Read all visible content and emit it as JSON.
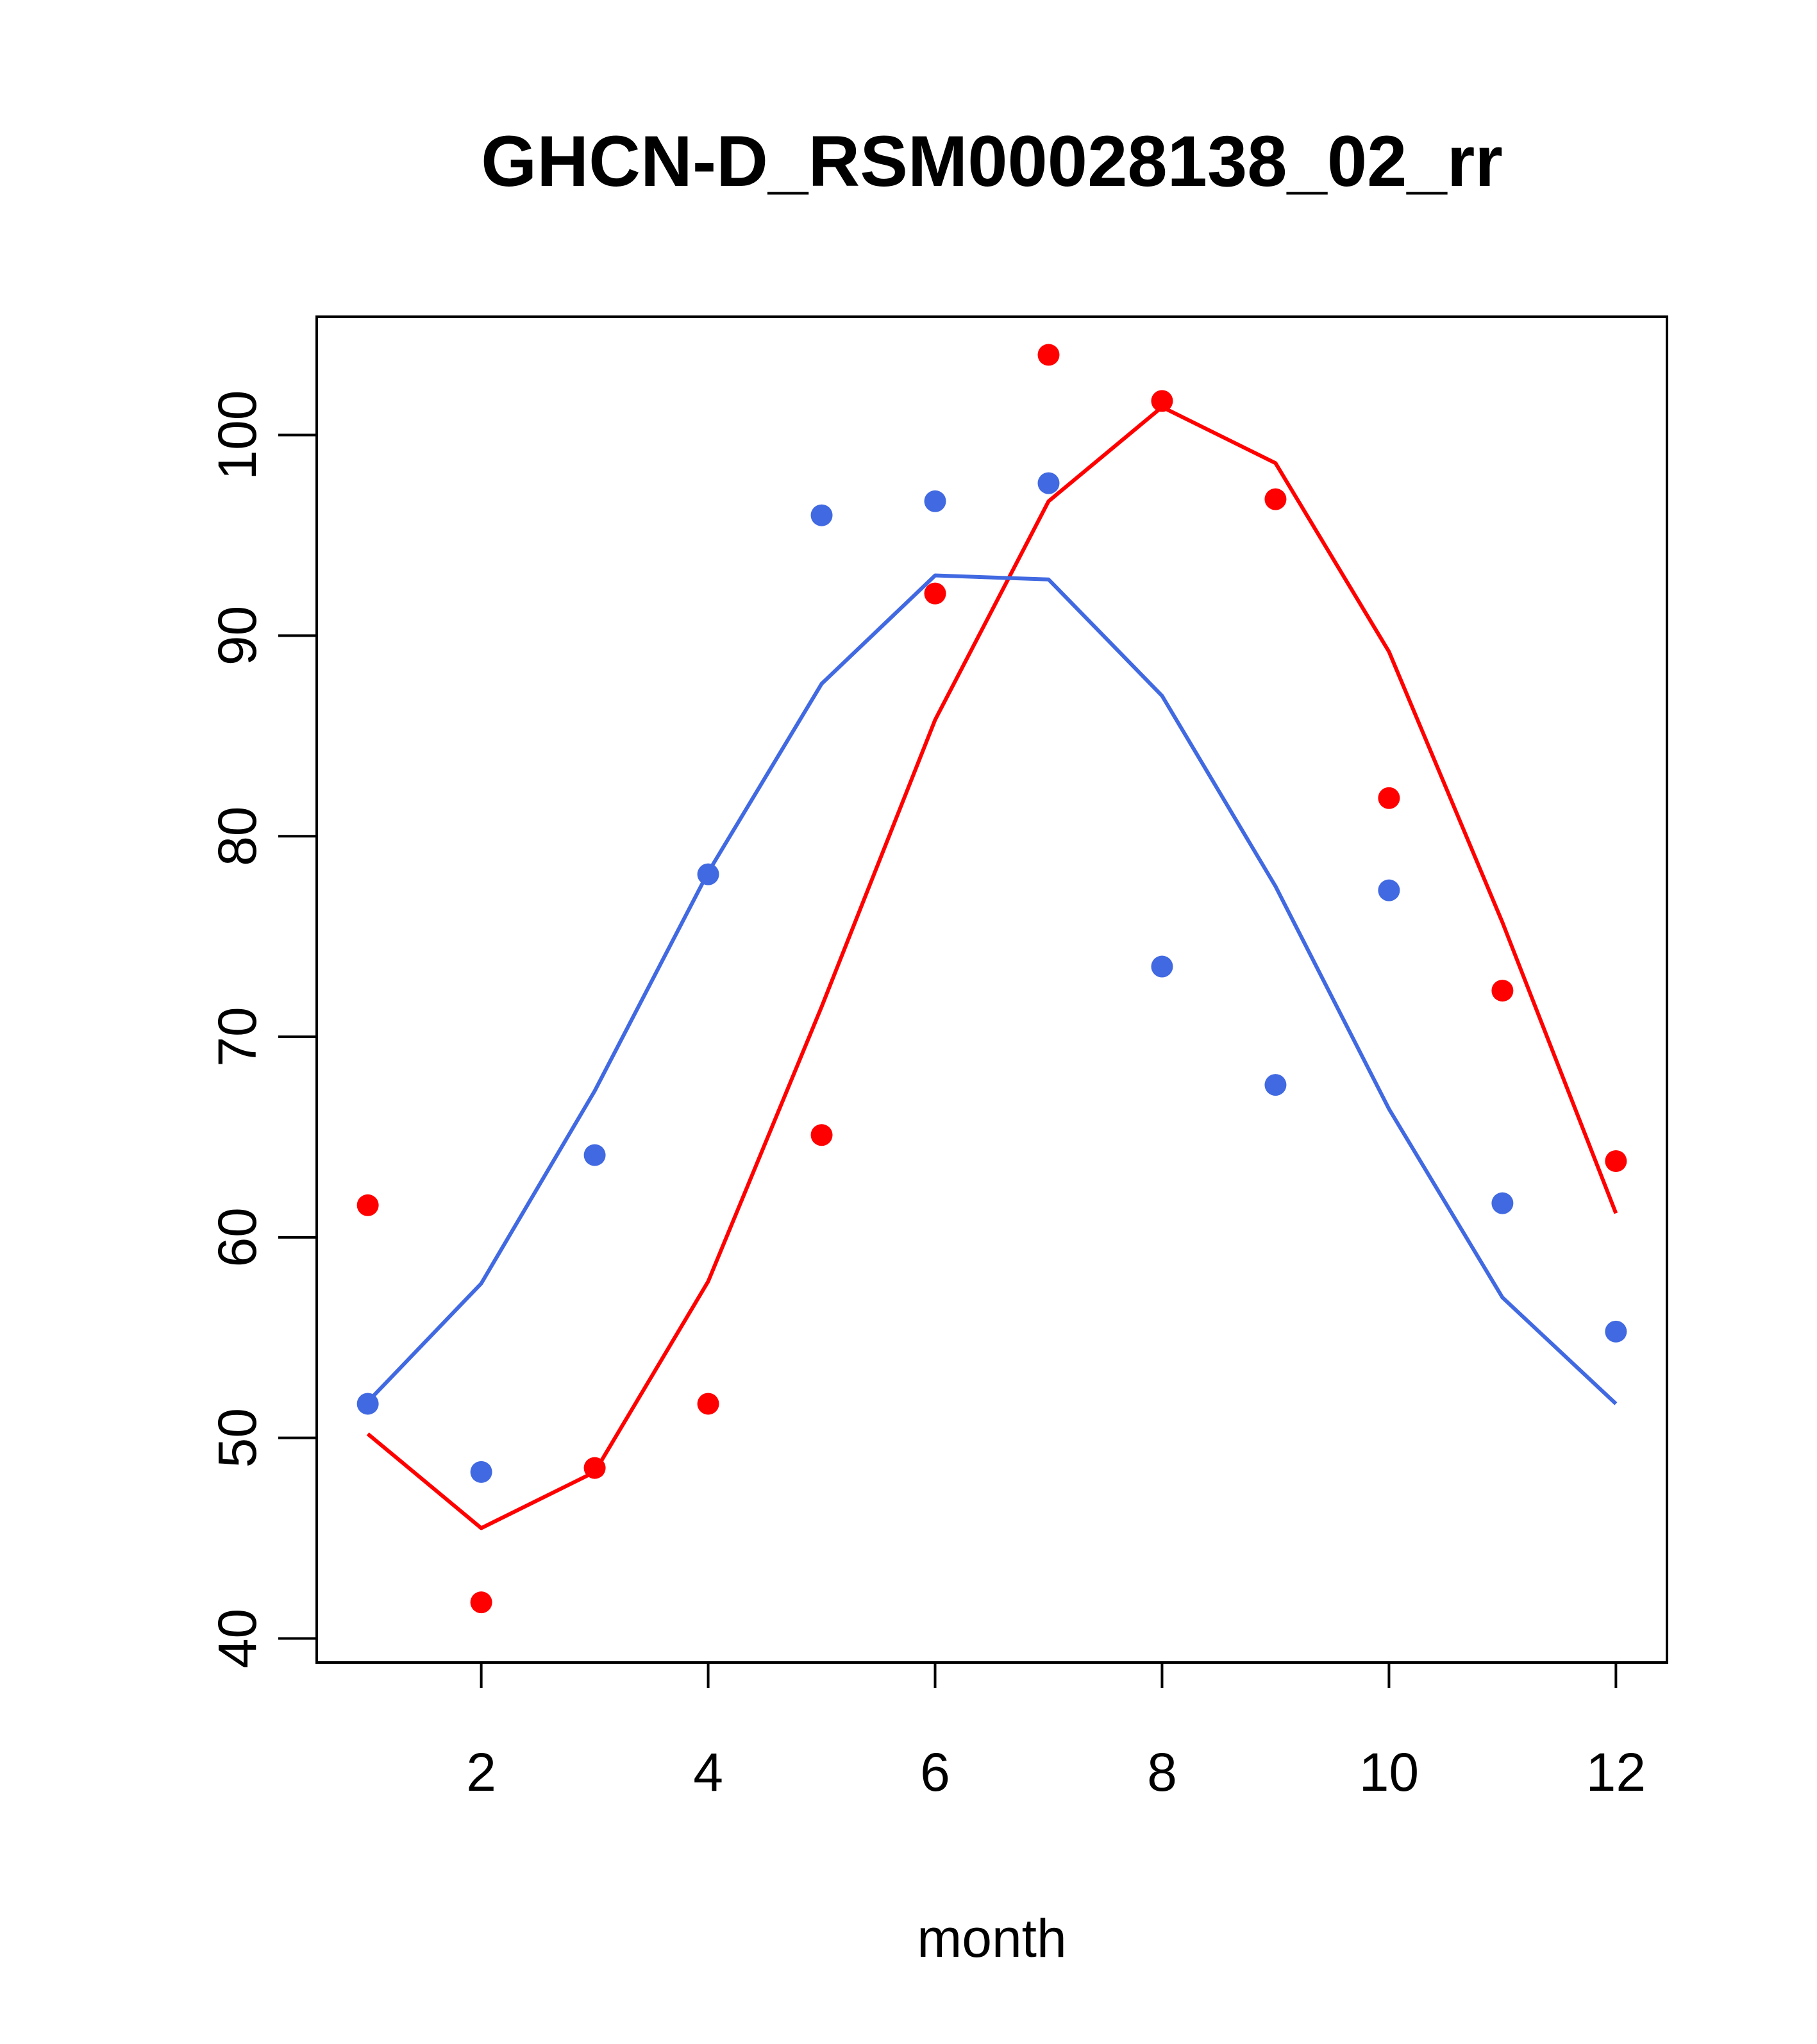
{
  "chart_data": {
    "type": "scatter",
    "title": "GHCN-D_RSM00028138_02_rr",
    "xlabel": "month",
    "ylabel": "",
    "xlim": [
      0.55,
      12.45
    ],
    "ylim": [
      38.8,
      105.9
    ],
    "xticks": [
      2,
      4,
      6,
      8,
      10,
      12
    ],
    "yticks": [
      40,
      50,
      60,
      70,
      80,
      90,
      100
    ],
    "x": [
      1,
      2,
      3,
      4,
      5,
      6,
      7,
      8,
      9,
      10,
      11,
      12
    ],
    "series": [
      {
        "name": "red",
        "color": "#ff0000",
        "points": [
          61.6,
          41.8,
          48.5,
          51.7,
          65.1,
          92.1,
          104.0,
          101.7,
          96.8,
          81.9,
          72.3,
          63.8
        ],
        "curve": [
          50.2,
          45.5,
          48.3,
          57.8,
          71.5,
          85.8,
          96.7,
          101.4,
          98.6,
          89.2,
          75.7,
          61.2
        ]
      },
      {
        "name": "blue",
        "color": "#4169e1",
        "points": [
          51.7,
          48.3,
          64.1,
          78.1,
          96.0,
          96.7,
          97.6,
          73.5,
          67.6,
          77.3,
          61.7,
          55.3
        ],
        "curve": [
          51.8,
          57.7,
          67.3,
          78.2,
          87.6,
          93.0,
          92.8,
          87.0,
          77.5,
          66.4,
          57.0,
          51.7
        ]
      }
    ]
  }
}
